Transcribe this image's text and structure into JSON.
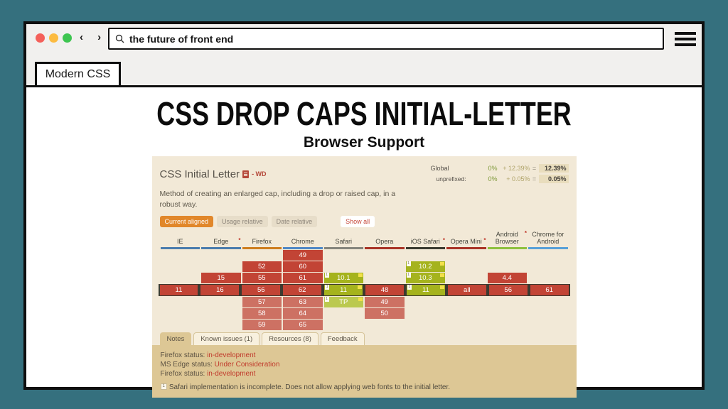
{
  "browser_chrome": {
    "traffic_lights": [
      "#f4605a",
      "#fcbb40",
      "#3dc550"
    ],
    "back_label": "‹",
    "forward_label": "›",
    "search": {
      "value": "the future of front end"
    },
    "tab_label": "Modern CSS"
  },
  "content": {
    "title": "CSS DROP CAPS INITIAL-LETTER",
    "subtitle": "Browser Support"
  },
  "panel": {
    "feature": {
      "name": "CSS Initial Letter",
      "spec_status": "- WD"
    },
    "stats": [
      {
        "label": "Global",
        "sub": false,
        "parts": [
          "0%",
          "+ 12.39%",
          "=",
          "12.39%"
        ]
      },
      {
        "label": "unprefixed:",
        "sub": true,
        "parts": [
          "0%",
          "+ 0.05%",
          "=",
          "0.05%"
        ]
      }
    ],
    "description": "Method of creating an enlarged cap, including a drop or raised cap, in a robust way.",
    "view_buttons": [
      {
        "label": "Current aligned",
        "active": true,
        "showall": false
      },
      {
        "label": "Usage relative",
        "active": false,
        "showall": false
      },
      {
        "label": "Date relative",
        "active": false,
        "showall": false
      },
      {
        "label": "Show all",
        "active": false,
        "showall": true
      }
    ],
    "table": {
      "current_row_index": 3,
      "row_count": 7,
      "columns": [
        {
          "name": "IE",
          "star": false,
          "color": "#4a7cad",
          "cells": [
            null,
            null,
            null,
            {
              "v": "11",
              "t": "red"
            },
            null,
            null,
            null
          ]
        },
        {
          "name": "Edge",
          "star": true,
          "color": "#4a7cad",
          "cells": [
            null,
            null,
            {
              "v": "15",
              "t": "red"
            },
            {
              "v": "16",
              "t": "red"
            },
            null,
            null,
            null
          ]
        },
        {
          "name": "Firefox",
          "star": false,
          "color": "#cd7d1e",
          "cells": [
            null,
            {
              "v": "52",
              "t": "red"
            },
            {
              "v": "55",
              "t": "red"
            },
            {
              "v": "56",
              "t": "red"
            },
            {
              "v": "57",
              "t": "red-f"
            },
            {
              "v": "58",
              "t": "red-f"
            },
            {
              "v": "59",
              "t": "red-f"
            }
          ]
        },
        {
          "name": "Chrome",
          "star": false,
          "color": "#4e87c5",
          "cells": [
            {
              "v": "49",
              "t": "red"
            },
            {
              "v": "60",
              "t": "red"
            },
            {
              "v": "61",
              "t": "red"
            },
            {
              "v": "62",
              "t": "red"
            },
            {
              "v": "63",
              "t": "red-f"
            },
            {
              "v": "64",
              "t": "red-f"
            },
            {
              "v": "65",
              "t": "red-f"
            }
          ]
        },
        {
          "name": "Safari",
          "star": false,
          "color": "#85857c",
          "cells": [
            null,
            null,
            {
              "v": "10.1",
              "t": "green",
              "b": true
            },
            {
              "v": "11",
              "t": "green",
              "b": true
            },
            {
              "v": "TP",
              "t": "green-f",
              "b": true
            },
            null,
            null
          ]
        },
        {
          "name": "Opera",
          "star": false,
          "color": "#a83326",
          "cells": [
            null,
            null,
            null,
            {
              "v": "48",
              "t": "red"
            },
            {
              "v": "49",
              "t": "red-f"
            },
            {
              "v": "50",
              "t": "red-f"
            },
            null
          ]
        },
        {
          "name": "iOS Safari",
          "star": true,
          "color": "#3a3a30",
          "cells": [
            null,
            {
              "v": "10.2",
              "t": "green",
              "b": true
            },
            {
              "v": "10.3",
              "t": "green",
              "b": true
            },
            {
              "v": "11",
              "t": "green",
              "b": true
            },
            null,
            null,
            null
          ]
        },
        {
          "name": "Opera Mini",
          "star": true,
          "color": "#a83326",
          "cells": [
            null,
            null,
            null,
            {
              "v": "all",
              "t": "red"
            },
            null,
            null,
            null
          ]
        },
        {
          "name": "Android Browser",
          "star": true,
          "color": "#8ec03e",
          "cells": [
            null,
            null,
            {
              "v": "4.4",
              "t": "red"
            },
            {
              "v": "56",
              "t": "red"
            },
            null,
            null,
            null
          ]
        },
        {
          "name": "Chrome for Android",
          "star": false,
          "color": "#57a0d8",
          "cells": [
            null,
            null,
            null,
            {
              "v": "61",
              "t": "red"
            },
            null,
            null,
            null
          ]
        }
      ]
    },
    "tabs": [
      {
        "label": "Notes",
        "active": true
      },
      {
        "label": "Known issues (1)",
        "active": false
      },
      {
        "label": "Resources (8)",
        "active": false
      },
      {
        "label": "Feedback",
        "active": false
      }
    ],
    "notes": {
      "statuses": [
        {
          "label": "Firefox status:",
          "value": "in-development"
        },
        {
          "label": "MS Edge status:",
          "value": "Under Consideration"
        },
        {
          "label": "Firefox status:",
          "value": "in-development"
        }
      ],
      "footnote": {
        "sup": "1",
        "text": "Safari implementation is incomplete. Does not allow applying web fonts to the initial letter."
      }
    }
  }
}
